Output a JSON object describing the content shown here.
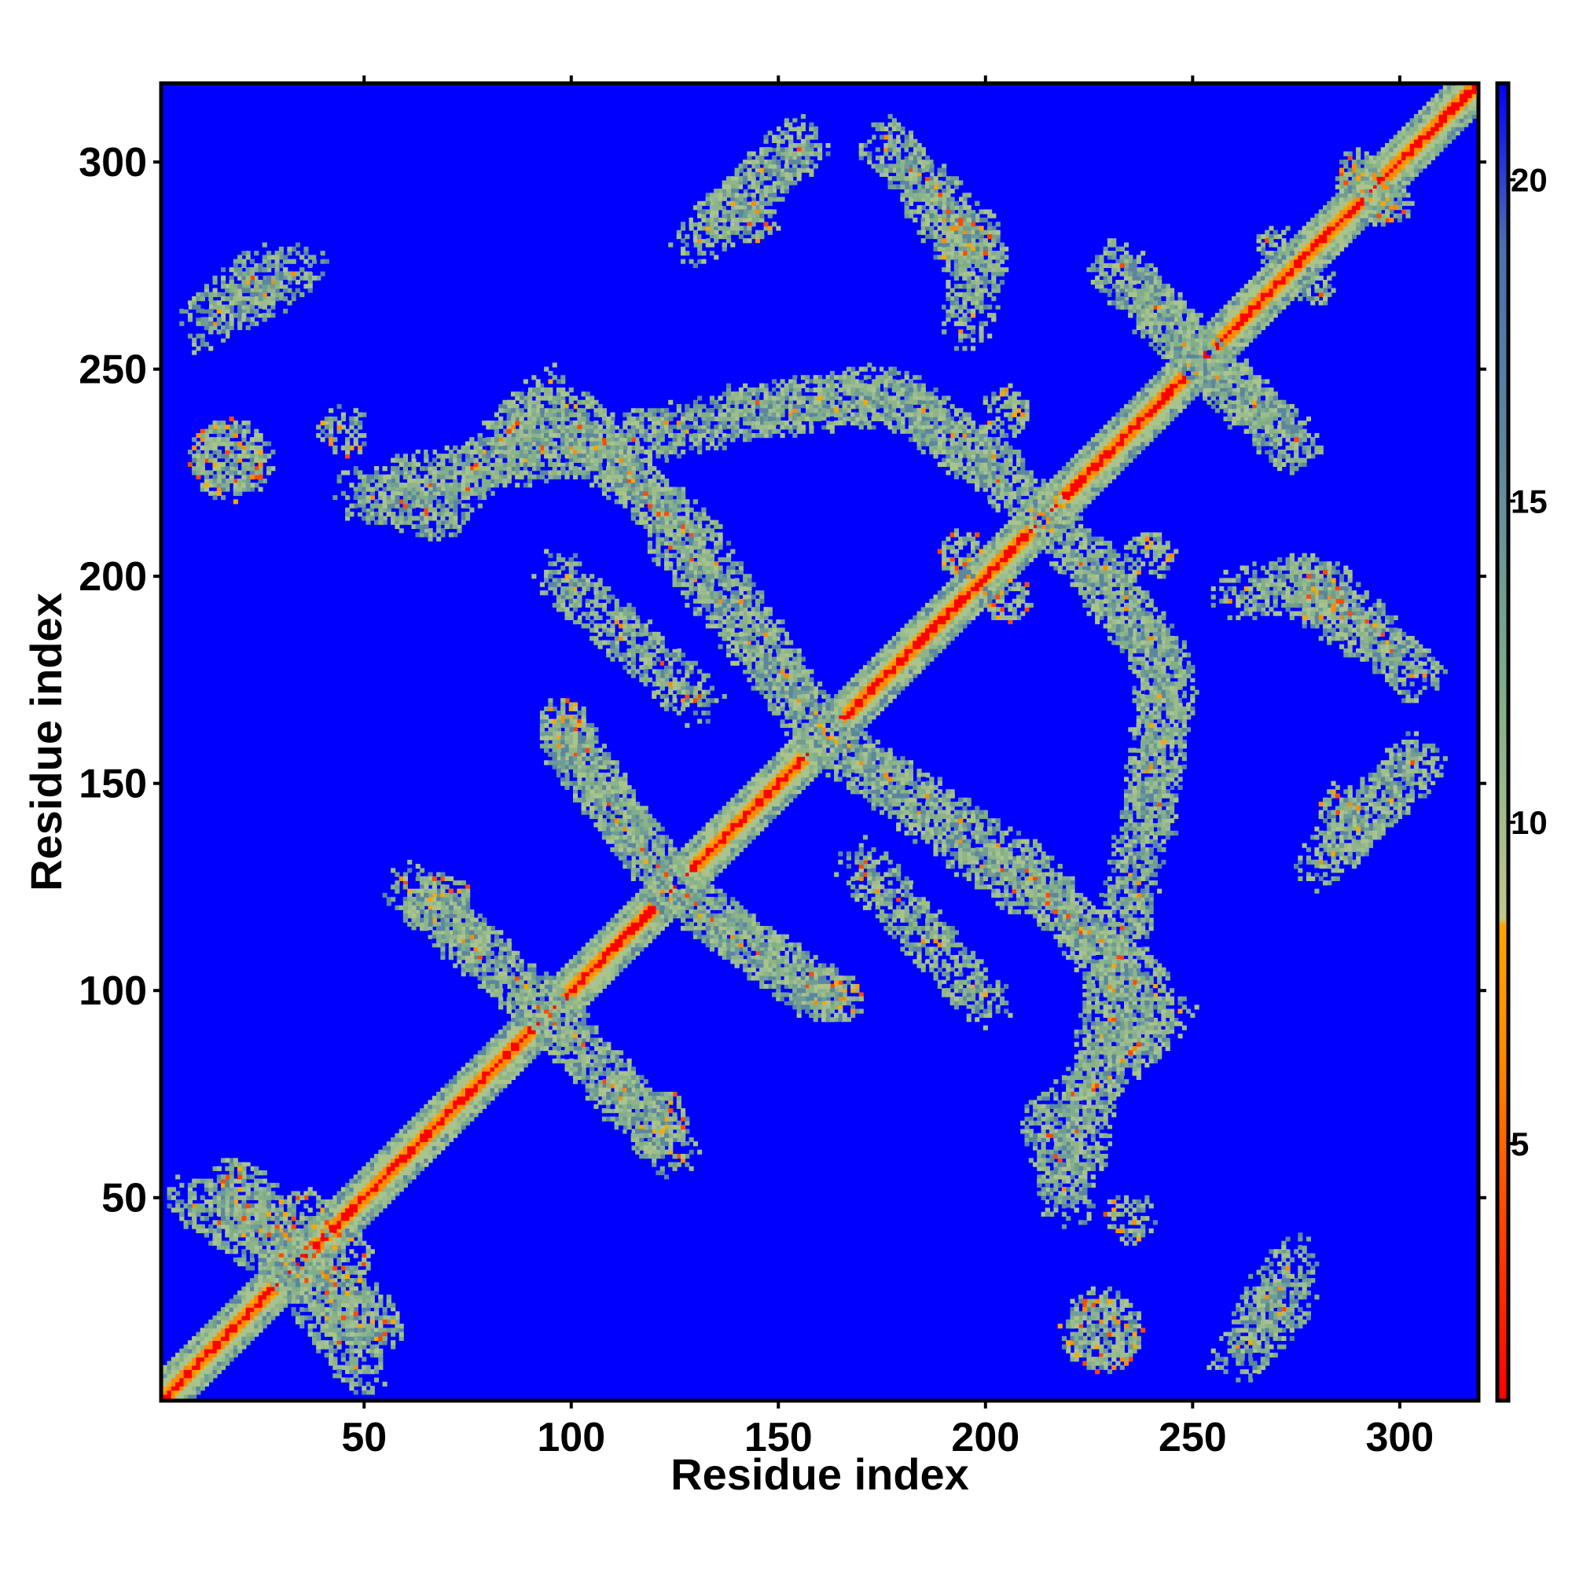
{
  "chart_data": {
    "type": "heatmap",
    "title": "",
    "xlabel": "Residue index",
    "ylabel": "Residue index",
    "xlim": [
      1,
      319
    ],
    "ylim": [
      1,
      319
    ],
    "x_ticks": [
      50,
      100,
      150,
      200,
      250,
      300
    ],
    "y_ticks": [
      50,
      100,
      150,
      200,
      250,
      300
    ],
    "colorbar": {
      "range": [
        1,
        21.5
      ],
      "ticks": [
        5,
        10,
        15,
        20
      ],
      "stops": [
        {
          "value": 1,
          "color": "#ff0000"
        },
        {
          "value": 4,
          "color": "#ff4a00"
        },
        {
          "value": 6.5,
          "color": "#ff8c00"
        },
        {
          "value": 8.4,
          "color": "#ffa500"
        },
        {
          "value": 8.5,
          "color": "#c2c78a"
        },
        {
          "value": 12,
          "color": "#7faf8a"
        },
        {
          "value": 16,
          "color": "#5a86a0"
        },
        {
          "value": 19,
          "color": "#4a6fb0"
        },
        {
          "value": 21.5,
          "color": "#0000ff"
        }
      ]
    },
    "background_color": "#0000ff",
    "diagonal": {
      "core_color": "#ff0000",
      "mid_color": "#ff8c00",
      "outer_color": "#8fb48a",
      "half_width_residues": 7
    },
    "contact_bands": [
      {
        "from": [
          2,
          2
        ],
        "to": [
          319,
          319
        ],
        "kind": "diagonal"
      },
      {
        "from": [
          60,
          125
        ],
        "to": [
          92,
          97
        ],
        "kind": "helix-pair"
      },
      {
        "from": [
          92,
          97
        ],
        "to": [
          122,
          65
        ],
        "kind": "helix-pair"
      },
      {
        "from": [
          98,
          163
        ],
        "to": [
          124,
          125
        ],
        "kind": "helix-pair"
      },
      {
        "from": [
          124,
          125
        ],
        "to": [
          162,
          97
        ],
        "kind": "helix-pair"
      },
      {
        "from": [
          122,
          212
        ],
        "to": [
          160,
          162
        ],
        "kind": "helix-pair"
      },
      {
        "from": [
          160,
          162
        ],
        "to": [
          212,
          128
        ],
        "kind": "helix-pair"
      },
      {
        "from": [
          212,
          128
        ],
        "to": [
          240,
          92
        ],
        "kind": "helix-pair"
      },
      {
        "from": [
          215,
          215
        ],
        "to": [
          245,
          175
        ],
        "kind": "helix-pair"
      },
      {
        "from": [
          245,
          175
        ],
        "to": [
          222,
          55
        ],
        "kind": "helix-pair"
      },
      {
        "from": [
          230,
          86
        ],
        "to": [
          245,
          95
        ],
        "kind": "helix-pair"
      },
      {
        "from": [
          140,
          240
        ],
        "to": [
          180,
          243
        ],
        "kind": "helix-pair"
      },
      {
        "from": [
          180,
          243
        ],
        "to": [
          205,
          225
        ],
        "kind": "helix-pair"
      },
      {
        "from": [
          47,
          220
        ],
        "to": [
          68,
          215
        ],
        "kind": "helix-pair"
      },
      {
        "from": [
          68,
          215
        ],
        "to": [
          90,
          240
        ],
        "kind": "helix-pair"
      },
      {
        "from": [
          100,
          240
        ],
        "to": [
          122,
          215
        ],
        "kind": "helix-pair"
      },
      {
        "from": [
          135,
          285
        ],
        "to": [
          157,
          305
        ],
        "kind": "helix-pair"
      },
      {
        "from": [
          180,
          300
        ],
        "to": [
          197,
          275
        ],
        "kind": "helix-pair"
      },
      {
        "from": [
          230,
          275
        ],
        "to": [
          255,
          250
        ],
        "kind": "helix-pair"
      },
      {
        "from": [
          255,
          250
        ],
        "to": [
          275,
          232
        ],
        "kind": "helix-pair"
      },
      {
        "from": [
          260,
          195
        ],
        "to": [
          280,
          200
        ],
        "kind": "helix-pair"
      },
      {
        "from": [
          280,
          200
        ],
        "to": [
          305,
          175
        ],
        "kind": "helix-pair"
      },
      {
        "from": [
          280,
          130
        ],
        "to": [
          305,
          155
        ],
        "kind": "helix-pair"
      },
      {
        "from": [
          265,
          20
        ],
        "to": [
          275,
          35
        ],
        "kind": "helix-pair"
      },
      {
        "from": [
          10,
          260
        ],
        "to": [
          27,
          275
        ],
        "kind": "helix-pair"
      },
      {
        "from": [
          8,
          50
        ],
        "to": [
          30,
          35
        ],
        "kind": "helix-pair"
      },
      {
        "from": [
          30,
          35
        ],
        "to": [
          55,
          18
        ],
        "kind": "helix-pair"
      },
      {
        "from": [
          170,
          130
        ],
        "to": [
          200,
          97
        ],
        "kind": "helix-pair"
      }
    ],
    "contact_blobs": [
      {
        "center": [
          228,
          18
        ],
        "radius": 10
      },
      {
        "center": [
          17,
          228
        ],
        "radius": 9
      },
      {
        "center": [
          22,
          50
        ],
        "radius": 8
      },
      {
        "center": [
          45,
          35
        ],
        "radius": 7
      },
      {
        "center": [
          160,
          100
        ],
        "radius": 6
      },
      {
        "center": [
          98,
          165
        ],
        "radius": 6
      },
      {
        "center": [
          70,
          122
        ],
        "radius": 6
      },
      {
        "center": [
          120,
          70
        ],
        "radius": 6
      },
      {
        "center": [
          205,
          240
        ],
        "radius": 6
      },
      {
        "center": [
          195,
          205
        ],
        "radius": 6
      },
      {
        "center": [
          290,
          295
        ],
        "radius": 5
      },
      {
        "center": [
          298,
          290
        ],
        "radius": 5
      },
      {
        "center": [
          270,
          280
        ],
        "radius": 5
      },
      {
        "center": [
          145,
          285
        ],
        "radius": 5
      },
      {
        "center": [
          195,
          280
        ],
        "radius": 6
      },
      {
        "center": [
          235,
          45
        ],
        "radius": 6
      }
    ]
  }
}
